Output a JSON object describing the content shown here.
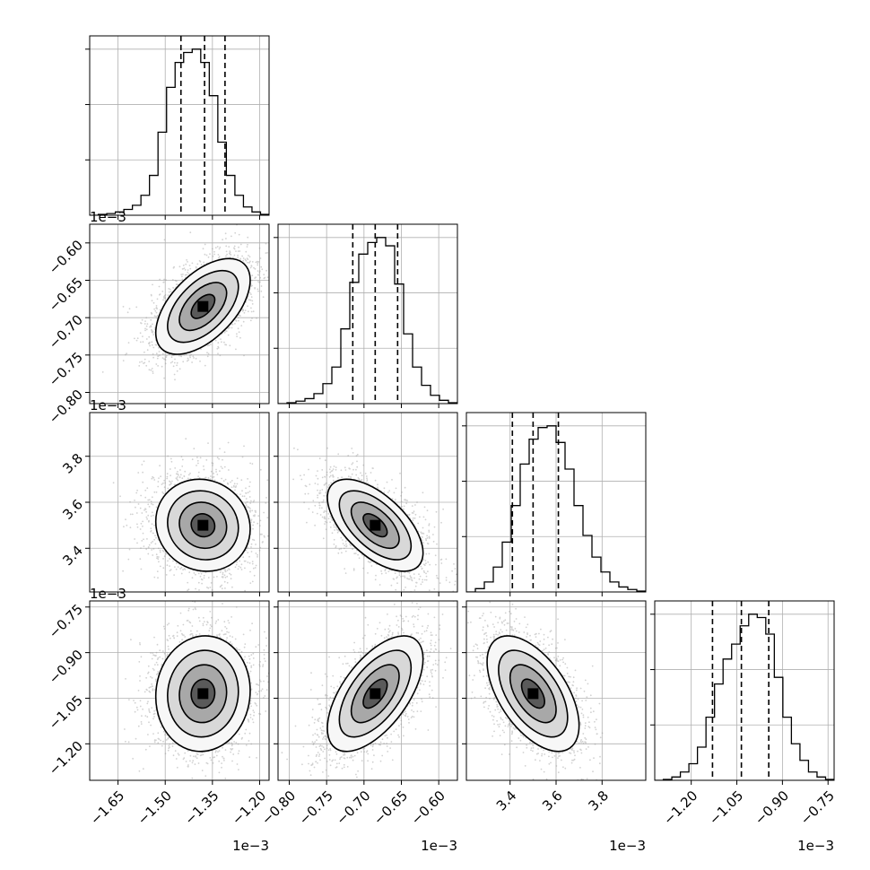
{
  "chart_data": {
    "type": "corner",
    "title": "",
    "parameters": [
      {
        "index": 0,
        "range": [
          -0.00174,
          -0.00117
        ],
        "ticks": [
          -0.00165,
          -0.0015,
          -0.00135,
          -0.0012
        ],
        "tick_labels": [
          "−1.65",
          "−1.50",
          "−1.35",
          "−1.20"
        ],
        "offset_label": "1e−3",
        "quantiles": [
          -0.00145,
          -0.001375,
          -0.00131
        ],
        "hist": [
          0.0,
          0.005,
          0.01,
          0.02,
          0.035,
          0.06,
          0.12,
          0.24,
          0.5,
          0.77,
          0.92,
          0.98,
          1.0,
          0.92,
          0.72,
          0.44,
          0.24,
          0.12,
          0.05,
          0.02,
          0.005
        ]
      },
      {
        "index": 1,
        "range": [
          -0.000815,
          -0.000575
        ],
        "ticks": [
          -0.0008,
          -0.00075,
          -0.0007,
          -0.00065,
          -0.0006
        ],
        "tick_labels": [
          "−0.80",
          "−0.75",
          "−0.70",
          "−0.65",
          "−0.60"
        ],
        "offset_label": "1e−3",
        "quantiles": [
          -0.000715,
          -0.000685,
          -0.000655
        ],
        "hist": [
          0.0,
          0.005,
          0.015,
          0.03,
          0.06,
          0.12,
          0.22,
          0.45,
          0.73,
          0.9,
          0.97,
          1.0,
          0.95,
          0.72,
          0.42,
          0.22,
          0.11,
          0.05,
          0.02,
          0.005
        ]
      },
      {
        "index": 2,
        "range": [
          0.00321,
          0.00399
        ],
        "ticks": [
          0.0034,
          0.0036,
          0.0038
        ],
        "tick_labels": [
          "3.4",
          "3.6",
          "3.8"
        ],
        "offset_label": "1e−3",
        "quantiles": [
          0.00341,
          0.0035,
          0.00361
        ],
        "hist": [
          0.0,
          0.02,
          0.06,
          0.15,
          0.3,
          0.52,
          0.77,
          0.92,
          0.99,
          1.0,
          0.9,
          0.74,
          0.52,
          0.34,
          0.21,
          0.12,
          0.06,
          0.03,
          0.015,
          0.005
        ]
      },
      {
        "index": 3,
        "range": [
          -0.00132,
          -0.00073
        ],
        "ticks": [
          -0.0012,
          -0.00105,
          -0.0009,
          -0.00075
        ],
        "tick_labels": [
          "−1.20",
          "−1.05",
          "−0.90",
          "−0.75"
        ],
        "offset_label": "1e−3",
        "quantiles": [
          -0.00113,
          -0.001035,
          -0.000945
        ],
        "hist": [
          0.0,
          0.005,
          0.02,
          0.05,
          0.1,
          0.2,
          0.38,
          0.58,
          0.73,
          0.82,
          0.93,
          1.0,
          0.98,
          0.88,
          0.62,
          0.38,
          0.22,
          0.12,
          0.05,
          0.02,
          0.005
        ]
      }
    ],
    "pairs": [
      {
        "col": 0,
        "row": 1,
        "center": [
          -0.00138,
          -0.000685
        ],
        "sigma": [
          7.5e-05,
          3.2e-05
        ],
        "rho": 0.55
      },
      {
        "col": 0,
        "row": 2,
        "center": [
          -0.00138,
          0.0035
        ],
        "sigma": [
          7.5e-05,
          0.0001
        ],
        "rho": -0.08
      },
      {
        "col": 1,
        "row": 2,
        "center": [
          -0.000685,
          0.0035
        ],
        "sigma": [
          3.2e-05,
          0.0001
        ],
        "rho": -0.6
      },
      {
        "col": 0,
        "row": 3,
        "center": [
          -0.00138,
          -0.001035
        ],
        "sigma": [
          7.5e-05,
          9.5e-05
        ],
        "rho": 0.05
      },
      {
        "col": 1,
        "row": 3,
        "center": [
          -0.000685,
          -0.001035
        ],
        "sigma": [
          3.2e-05,
          9.5e-05
        ],
        "rho": 0.6
      },
      {
        "col": 2,
        "row": 3,
        "center": [
          0.0035,
          -0.001035
        ],
        "sigma": [
          0.0001,
          9.5e-05
        ],
        "rho": -0.55
      }
    ],
    "contour_levels_sigma": [
      0.5,
      1.0,
      1.5,
      2.0
    ],
    "grid": true,
    "legend": "none"
  }
}
